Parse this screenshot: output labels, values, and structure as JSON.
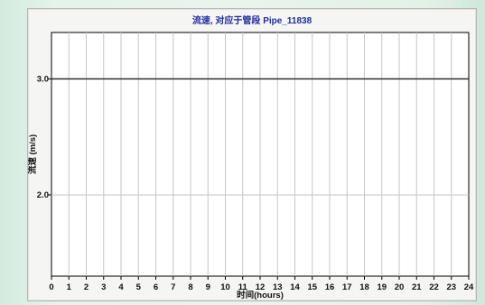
{
  "chart_data": {
    "type": "line",
    "title": "流速, 对应于管段 Pipe_11838",
    "xlabel": "时间(hours)",
    "ylabel": "流速 (m/s)",
    "xlim": [
      0,
      24
    ],
    "ylim": [
      1.3,
      3.4
    ],
    "x_ticks": [
      "0",
      "1",
      "2",
      "3",
      "4",
      "5",
      "6",
      "7",
      "8",
      "9",
      "10",
      "11",
      "12",
      "13",
      "14",
      "15",
      "16",
      "17",
      "18",
      "19",
      "20",
      "21",
      "22",
      "23",
      "24"
    ],
    "y_ticks": [
      {
        "value": 2.0,
        "label": "2.0"
      },
      {
        "value": 3.0,
        "label": "3.0"
      }
    ],
    "grid": true,
    "series": [
      {
        "color": "#222222",
        "x": [
          0,
          24
        ],
        "y": [
          3.0,
          3.0
        ]
      }
    ]
  },
  "colors": {
    "title": "#1d2ba3",
    "grid": "#c6c6c6",
    "axis": "#000000",
    "plot_background": "#ffffff",
    "panel_background": "#f5f5f4"
  }
}
